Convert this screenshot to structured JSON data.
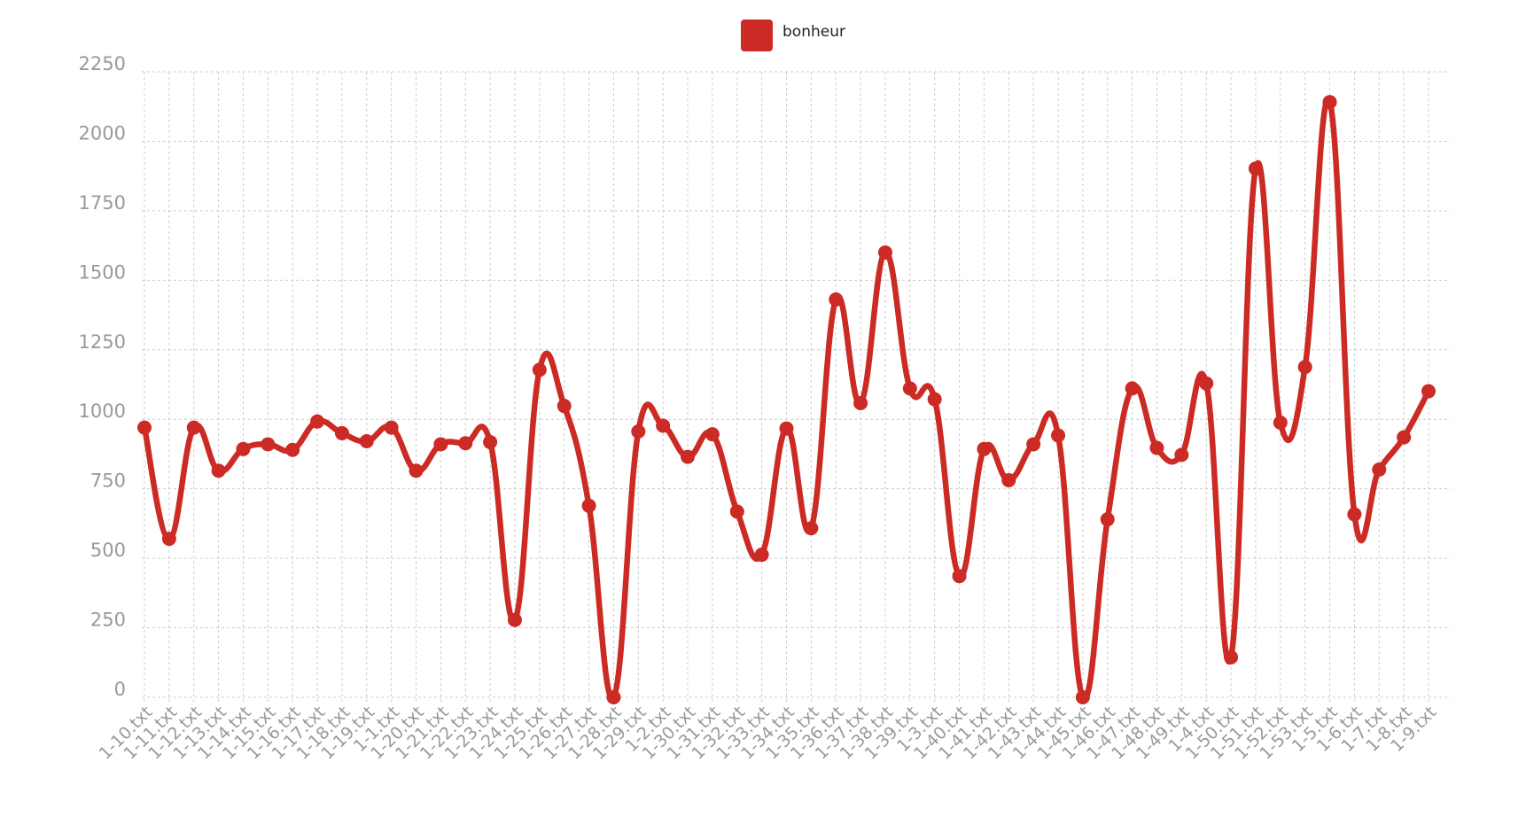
{
  "chart_data": {
    "type": "line",
    "categories": [
      "1-10.txt",
      "1-11.txt",
      "1-12.txt",
      "1-13.txt",
      "1-14.txt",
      "1-15.txt",
      "1-16.txt",
      "1-17.txt",
      "1-18.txt",
      "1-19.txt",
      "1-1.txt",
      "1-20.txt",
      "1-21.txt",
      "1-22.txt",
      "1-23.txt",
      "1-24.txt",
      "1-25.txt",
      "1-26.txt",
      "1-27.txt",
      "1-28.txt",
      "1-29.txt",
      "1-2.txt",
      "1-30.txt",
      "1-31.txt",
      "1-32.txt",
      "1-33.txt",
      "1-34.txt",
      "1-35.txt",
      "1-36.txt",
      "1-37.txt",
      "1-38.txt",
      "1-39.txt",
      "1-3.txt",
      "1-40.txt",
      "1-41.txt",
      "1-42.txt",
      "1-43.txt",
      "1-44.txt",
      "1-45.txt",
      "1-46.txt",
      "1-47.txt",
      "1-48.txt",
      "1-49.txt",
      "1-4.txt",
      "1-50.txt",
      "1-51.txt",
      "1-52.txt",
      "1-53.txt",
      "1-5.txt",
      "1-6.txt",
      "1-7.txt",
      "1-8.txt",
      "1-9.txt"
    ],
    "series": [
      {
        "name": "bonheur",
        "color": "#cc2a24",
        "values": [
          970,
          570,
          970,
          815,
          893,
          910,
          890,
          992,
          950,
          921,
          970,
          815,
          910,
          914,
          918,
          278,
          1178,
          1048,
          689,
          0,
          956,
          977,
          865,
          946,
          668,
          513,
          967,
          608,
          1431,
          1058,
          1600,
          1111,
          1072,
          436,
          893,
          781,
          910,
          942,
          0,
          640,
          1111,
          897,
          872,
          1129,
          144,
          1902,
          988,
          1188,
          2141,
          658,
          819,
          935,
          1101
        ]
      }
    ],
    "ylim": [
      0,
      2250
    ],
    "yticks": [
      0,
      250,
      500,
      750,
      1000,
      1250,
      1500,
      1750,
      2000,
      2250
    ],
    "grid": true,
    "legend": "top"
  }
}
